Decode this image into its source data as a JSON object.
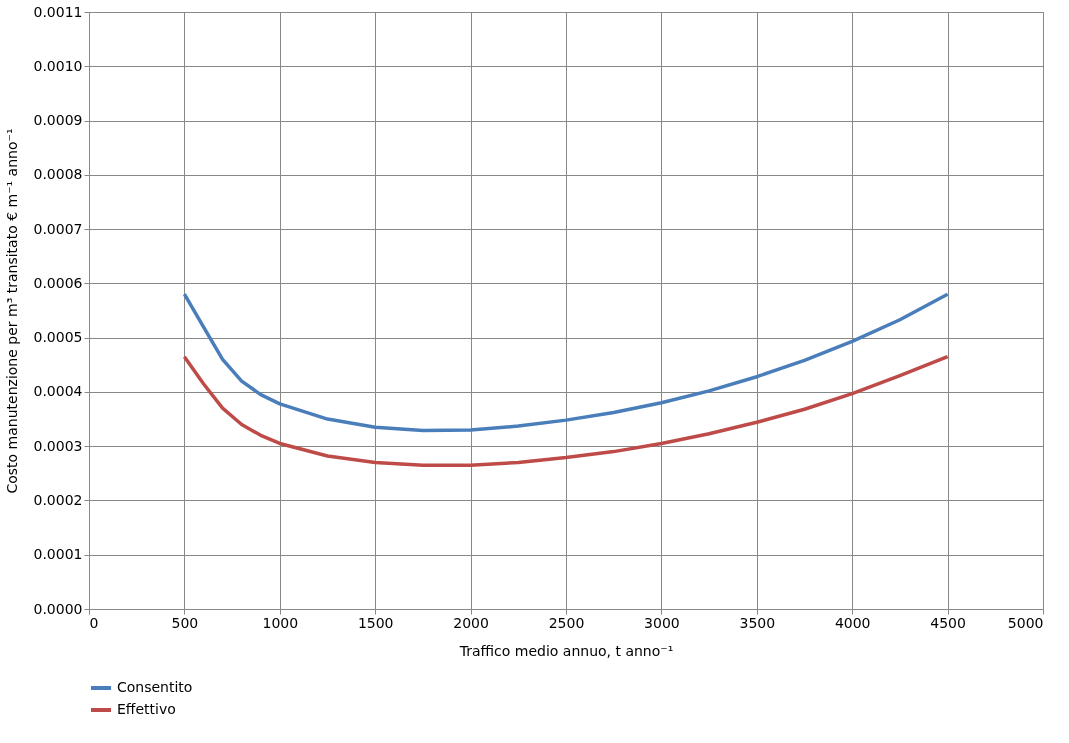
{
  "chart_data": {
    "type": "line",
    "xlabel": "Traffico medio annuo, t anno⁻¹",
    "ylabel": "Costo manutenzione  per m³ transitato  € m⁻¹  anno⁻¹",
    "x": [
      500,
      600,
      700,
      800,
      900,
      1000,
      1250,
      1500,
      1750,
      2000,
      2250,
      2500,
      2750,
      3000,
      3250,
      3500,
      3750,
      4000,
      4250,
      4500
    ],
    "series": [
      {
        "name": "Consentito",
        "color": "#4a7ebb",
        "values": [
          0.00058,
          0.00052,
          0.00046,
          0.00042,
          0.000395,
          0.000378,
          0.00035,
          0.000335,
          0.000329,
          0.00033,
          0.000337,
          0.000348,
          0.000362,
          0.00038,
          0.000402,
          0.000428,
          0.000458,
          0.000493,
          0.000533,
          0.00058
        ]
      },
      {
        "name": "Effettivo",
        "color": "#be4b48",
        "values": [
          0.000465,
          0.000415,
          0.00037,
          0.00034,
          0.00032,
          0.000305,
          0.000282,
          0.00027,
          0.000265,
          0.000265,
          0.00027,
          0.000279,
          0.00029,
          0.000305,
          0.000323,
          0.000344,
          0.000368,
          0.000397,
          0.00043,
          0.000465
        ]
      }
    ],
    "xlim": [
      0,
      5000
    ],
    "xticks": [
      0,
      500,
      1000,
      1500,
      2000,
      2500,
      3000,
      3500,
      4000,
      4500,
      5000
    ],
    "ylim": [
      0,
      0.0011
    ],
    "yticks": [
      {
        "value": 0,
        "label": "0.0000"
      },
      {
        "value": 0.0001,
        "label": "0.0001"
      },
      {
        "value": 0.0002,
        "label": "0.0002"
      },
      {
        "value": 0.0003,
        "label": "0.0003"
      },
      {
        "value": 0.0004,
        "label": "0.0004"
      },
      {
        "value": 0.0005,
        "label": "0.0005"
      },
      {
        "value": 0.0006,
        "label": "0.0006"
      },
      {
        "value": 0.0007,
        "label": "0.0007"
      },
      {
        "value": 0.0008,
        "label": "0.0008"
      },
      {
        "value": 0.0009,
        "label": "0.0009"
      },
      {
        "value": 0.001,
        "label": "0.0010"
      },
      {
        "value": 0.0011,
        "label": "0.0011"
      }
    ],
    "grid": true,
    "legend": "bottom left",
    "marker": "none",
    "line_style": "solid"
  }
}
